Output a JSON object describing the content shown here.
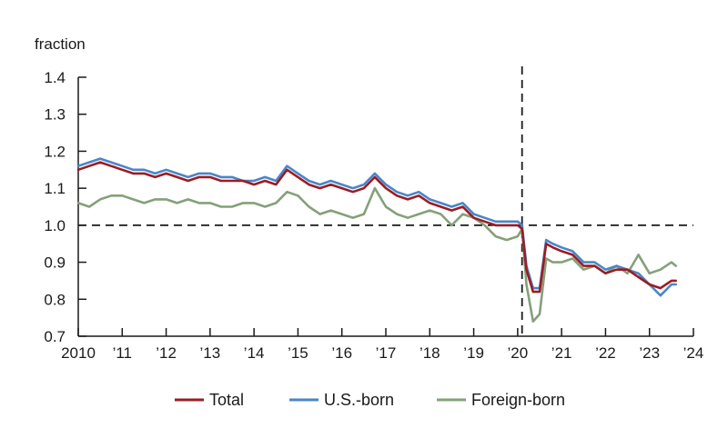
{
  "chart_data": {
    "type": "line",
    "ylabel": "fraction",
    "ylim": [
      0.7,
      1.4
    ],
    "yticks": [
      0.7,
      0.8,
      0.9,
      1.0,
      1.1,
      1.2,
      1.3,
      1.4
    ],
    "ytick_labels": [
      "0.7",
      "0.8",
      "0.9",
      "1.0",
      "1.1",
      "1.2",
      "1.3",
      "1.4"
    ],
    "xlim": [
      2010,
      2024
    ],
    "xticks": [
      2010,
      2011,
      2012,
      2013,
      2014,
      2015,
      2016,
      2017,
      2018,
      2019,
      2020,
      2021,
      2022,
      2023,
      2024
    ],
    "xtick_labels": [
      "2010",
      "’11",
      "’12",
      "’13",
      "’14",
      "’15",
      "’16",
      "’17",
      "’18",
      "’19",
      "’20",
      "’21",
      "’22",
      "’23",
      "’24"
    ],
    "reference_lines": [
      {
        "orientation": "horizontal",
        "value": 1.0,
        "style": "dashed",
        "color": "#1a1a1a"
      },
      {
        "orientation": "vertical",
        "value": 2020.1,
        "style": "dashed",
        "color": "#1a1a1a"
      }
    ],
    "legend_position": "bottom",
    "series": [
      {
        "name": "Total",
        "color": "#9b1c24",
        "points": [
          [
            2010.0,
            1.15
          ],
          [
            2010.25,
            1.16
          ],
          [
            2010.5,
            1.17
          ],
          [
            2010.75,
            1.16
          ],
          [
            2011.0,
            1.15
          ],
          [
            2011.25,
            1.14
          ],
          [
            2011.5,
            1.14
          ],
          [
            2011.75,
            1.13
          ],
          [
            2012.0,
            1.14
          ],
          [
            2012.25,
            1.13
          ],
          [
            2012.5,
            1.12
          ],
          [
            2012.75,
            1.13
          ],
          [
            2013.0,
            1.13
          ],
          [
            2013.25,
            1.12
          ],
          [
            2013.5,
            1.12
          ],
          [
            2013.75,
            1.12
          ],
          [
            2014.0,
            1.11
          ],
          [
            2014.25,
            1.12
          ],
          [
            2014.5,
            1.11
          ],
          [
            2014.75,
            1.15
          ],
          [
            2015.0,
            1.13
          ],
          [
            2015.25,
            1.11
          ],
          [
            2015.5,
            1.1
          ],
          [
            2015.75,
            1.11
          ],
          [
            2016.0,
            1.1
          ],
          [
            2016.25,
            1.09
          ],
          [
            2016.5,
            1.1
          ],
          [
            2016.75,
            1.13
          ],
          [
            2017.0,
            1.1
          ],
          [
            2017.25,
            1.08
          ],
          [
            2017.5,
            1.07
          ],
          [
            2017.75,
            1.08
          ],
          [
            2018.0,
            1.06
          ],
          [
            2018.25,
            1.05
          ],
          [
            2018.5,
            1.04
          ],
          [
            2018.75,
            1.05
          ],
          [
            2019.0,
            1.02
          ],
          [
            2019.25,
            1.01
          ],
          [
            2019.5,
            1.0
          ],
          [
            2019.75,
            1.0
          ],
          [
            2020.0,
            1.0
          ],
          [
            2020.1,
            0.99
          ],
          [
            2020.2,
            0.88
          ],
          [
            2020.35,
            0.82
          ],
          [
            2020.5,
            0.82
          ],
          [
            2020.65,
            0.95
          ],
          [
            2020.8,
            0.94
          ],
          [
            2021.0,
            0.93
          ],
          [
            2021.25,
            0.92
          ],
          [
            2021.5,
            0.89
          ],
          [
            2021.75,
            0.89
          ],
          [
            2022.0,
            0.87
          ],
          [
            2022.25,
            0.88
          ],
          [
            2022.5,
            0.88
          ],
          [
            2022.75,
            0.86
          ],
          [
            2023.0,
            0.84
          ],
          [
            2023.25,
            0.83
          ],
          [
            2023.5,
            0.85
          ],
          [
            2023.6,
            0.85
          ]
        ]
      },
      {
        "name": "U.S.-born",
        "color": "#4a86c8",
        "points": [
          [
            2010.0,
            1.16
          ],
          [
            2010.25,
            1.17
          ],
          [
            2010.5,
            1.18
          ],
          [
            2010.75,
            1.17
          ],
          [
            2011.0,
            1.16
          ],
          [
            2011.25,
            1.15
          ],
          [
            2011.5,
            1.15
          ],
          [
            2011.75,
            1.14
          ],
          [
            2012.0,
            1.15
          ],
          [
            2012.25,
            1.14
          ],
          [
            2012.5,
            1.13
          ],
          [
            2012.75,
            1.14
          ],
          [
            2013.0,
            1.14
          ],
          [
            2013.25,
            1.13
          ],
          [
            2013.5,
            1.13
          ],
          [
            2013.75,
            1.12
          ],
          [
            2014.0,
            1.12
          ],
          [
            2014.25,
            1.13
          ],
          [
            2014.5,
            1.12
          ],
          [
            2014.75,
            1.16
          ],
          [
            2015.0,
            1.14
          ],
          [
            2015.25,
            1.12
          ],
          [
            2015.5,
            1.11
          ],
          [
            2015.75,
            1.12
          ],
          [
            2016.0,
            1.11
          ],
          [
            2016.25,
            1.1
          ],
          [
            2016.5,
            1.11
          ],
          [
            2016.75,
            1.14
          ],
          [
            2017.0,
            1.11
          ],
          [
            2017.25,
            1.09
          ],
          [
            2017.5,
            1.08
          ],
          [
            2017.75,
            1.09
          ],
          [
            2018.0,
            1.07
          ],
          [
            2018.25,
            1.06
          ],
          [
            2018.5,
            1.05
          ],
          [
            2018.75,
            1.06
          ],
          [
            2019.0,
            1.03
          ],
          [
            2019.25,
            1.02
          ],
          [
            2019.5,
            1.01
          ],
          [
            2019.75,
            1.01
          ],
          [
            2020.0,
            1.01
          ],
          [
            2020.1,
            1.0
          ],
          [
            2020.2,
            0.89
          ],
          [
            2020.35,
            0.83
          ],
          [
            2020.5,
            0.83
          ],
          [
            2020.65,
            0.96
          ],
          [
            2020.8,
            0.95
          ],
          [
            2021.0,
            0.94
          ],
          [
            2021.25,
            0.93
          ],
          [
            2021.5,
            0.9
          ],
          [
            2021.75,
            0.9
          ],
          [
            2022.0,
            0.88
          ],
          [
            2022.25,
            0.89
          ],
          [
            2022.5,
            0.88
          ],
          [
            2022.75,
            0.87
          ],
          [
            2023.0,
            0.84
          ],
          [
            2023.25,
            0.81
          ],
          [
            2023.5,
            0.84
          ],
          [
            2023.6,
            0.84
          ]
        ]
      },
      {
        "name": "Foreign-born",
        "color": "#85a07a",
        "points": [
          [
            2010.0,
            1.06
          ],
          [
            2010.25,
            1.05
          ],
          [
            2010.5,
            1.07
          ],
          [
            2010.75,
            1.08
          ],
          [
            2011.0,
            1.08
          ],
          [
            2011.25,
            1.07
          ],
          [
            2011.5,
            1.06
          ],
          [
            2011.75,
            1.07
          ],
          [
            2012.0,
            1.07
          ],
          [
            2012.25,
            1.06
          ],
          [
            2012.5,
            1.07
          ],
          [
            2012.75,
            1.06
          ],
          [
            2013.0,
            1.06
          ],
          [
            2013.25,
            1.05
          ],
          [
            2013.5,
            1.05
          ],
          [
            2013.75,
            1.06
          ],
          [
            2014.0,
            1.06
          ],
          [
            2014.25,
            1.05
          ],
          [
            2014.5,
            1.06
          ],
          [
            2014.75,
            1.09
          ],
          [
            2015.0,
            1.08
          ],
          [
            2015.25,
            1.05
          ],
          [
            2015.5,
            1.03
          ],
          [
            2015.75,
            1.04
          ],
          [
            2016.0,
            1.03
          ],
          [
            2016.25,
            1.02
          ],
          [
            2016.5,
            1.03
          ],
          [
            2016.75,
            1.1
          ],
          [
            2017.0,
            1.05
          ],
          [
            2017.25,
            1.03
          ],
          [
            2017.5,
            1.02
          ],
          [
            2017.75,
            1.03
          ],
          [
            2018.0,
            1.04
          ],
          [
            2018.25,
            1.03
          ],
          [
            2018.5,
            1.0
          ],
          [
            2018.75,
            1.03
          ],
          [
            2019.0,
            1.02
          ],
          [
            2019.25,
            1.0
          ],
          [
            2019.5,
            0.97
          ],
          [
            2019.75,
            0.96
          ],
          [
            2020.0,
            0.97
          ],
          [
            2020.1,
            0.99
          ],
          [
            2020.2,
            0.84
          ],
          [
            2020.35,
            0.74
          ],
          [
            2020.5,
            0.76
          ],
          [
            2020.65,
            0.91
          ],
          [
            2020.8,
            0.9
          ],
          [
            2021.0,
            0.9
          ],
          [
            2021.25,
            0.91
          ],
          [
            2021.5,
            0.88
          ],
          [
            2021.75,
            0.89
          ],
          [
            2022.0,
            0.87
          ],
          [
            2022.25,
            0.89
          ],
          [
            2022.5,
            0.87
          ],
          [
            2022.75,
            0.92
          ],
          [
            2023.0,
            0.87
          ],
          [
            2023.25,
            0.88
          ],
          [
            2023.5,
            0.9
          ],
          [
            2023.6,
            0.89
          ]
        ]
      }
    ]
  }
}
